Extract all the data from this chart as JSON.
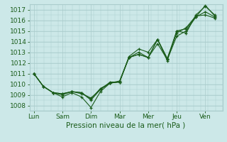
{
  "xlabel": "Pression niveau de la mer( hPa )",
  "bg_color": "#cce8e8",
  "grid_color": "#aacccc",
  "line_color": "#1a5c1a",
  "text_color": "#1a5c1a",
  "ylim": [
    1007.5,
    1017.5
  ],
  "yticks": [
    1008,
    1009,
    1010,
    1011,
    1012,
    1013,
    1014,
    1015,
    1016,
    1017
  ],
  "x_labels": [
    "Lun",
    "Sam",
    "Dim",
    "Mar",
    "Mer",
    "Jeu",
    "Ven"
  ],
  "x_positions": [
    0,
    1,
    2,
    3,
    4,
    5,
    6
  ],
  "xlim": [
    -0.15,
    6.6
  ],
  "series_x": [
    [
      0,
      0.33,
      0.67,
      1.0,
      1.33,
      1.67,
      2.0,
      2.33,
      2.67,
      3.0,
      3.33,
      3.67,
      4.0,
      4.33,
      4.67,
      5.0,
      5.33,
      5.67,
      6.0,
      6.33
    ],
    [
      0,
      0.33,
      0.67,
      1.0,
      1.33,
      1.67,
      2.0,
      2.33,
      2.67,
      3.0,
      3.33,
      3.67,
      4.0,
      4.33,
      4.67,
      5.0,
      5.33,
      5.67,
      6.0,
      6.33
    ],
    [
      0,
      0.33,
      0.67,
      1.0,
      1.33,
      1.67,
      2.0,
      2.33,
      2.67,
      3.0,
      3.33,
      3.67,
      4.0,
      4.33,
      4.67,
      5.0,
      5.33,
      5.67,
      6.0,
      6.33
    ],
    [
      0,
      0.33,
      0.67,
      1.0,
      1.33,
      1.67,
      2.0,
      2.33,
      2.67,
      3.0,
      3.33,
      3.67,
      4.0,
      4.33,
      4.67,
      5.0,
      5.33,
      5.67,
      6.0,
      6.33
    ]
  ],
  "series_y": [
    [
      1011.0,
      1009.8,
      1009.2,
      1008.8,
      1009.2,
      1008.8,
      1007.8,
      1009.3,
      1010.1,
      1010.2,
      1012.6,
      1013.3,
      1013.0,
      1014.2,
      1012.2,
      1015.0,
      1014.8,
      1016.5,
      1017.3,
      1016.5
    ],
    [
      1011.0,
      1009.8,
      1009.2,
      1009.0,
      1009.3,
      1009.2,
      1008.5,
      1009.5,
      1010.1,
      1010.3,
      1012.5,
      1013.0,
      1012.5,
      1014.2,
      1012.4,
      1015.0,
      1015.2,
      1016.3,
      1016.8,
      1016.3
    ],
    [
      1011.0,
      1009.8,
      1009.2,
      1009.1,
      1009.3,
      1009.2,
      1008.6,
      1009.6,
      1010.1,
      1010.2,
      1012.5,
      1012.8,
      1012.5,
      1014.2,
      1012.4,
      1014.8,
      1015.3,
      1016.4,
      1016.5,
      1016.2
    ],
    [
      1011.0,
      1009.8,
      1009.2,
      1009.1,
      1009.3,
      1009.1,
      1008.7,
      1009.5,
      1010.2,
      1010.2,
      1012.5,
      1012.8,
      1012.5,
      1013.8,
      1012.3,
      1014.5,
      1015.0,
      1016.3,
      1017.4,
      1016.4
    ]
  ]
}
